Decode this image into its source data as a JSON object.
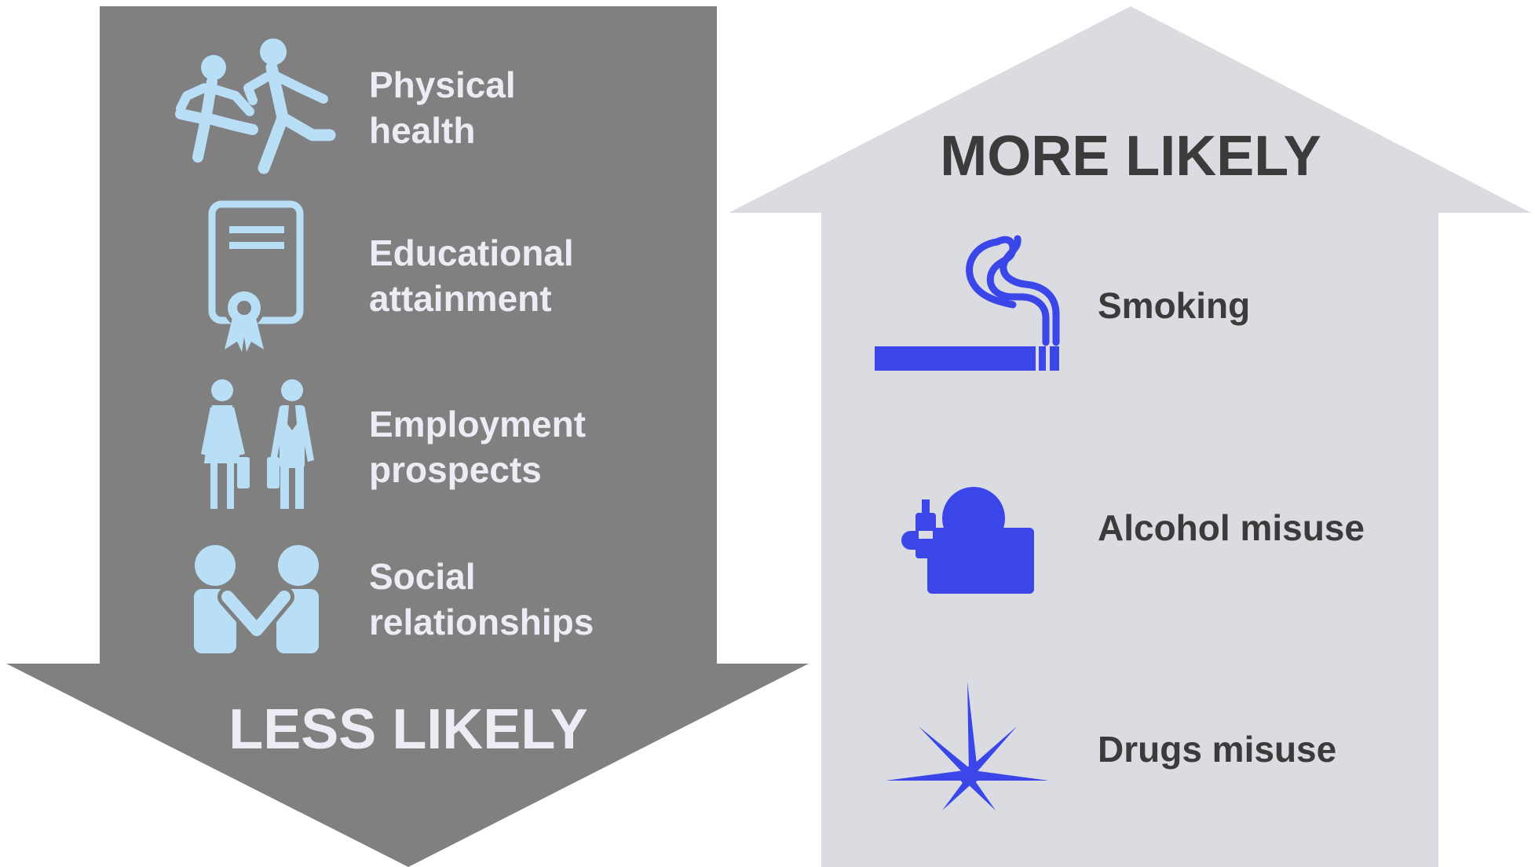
{
  "less_panel": {
    "heading": "LESS LIKELY",
    "color": "#808080",
    "icon_color": "#b9dff7",
    "items": [
      {
        "icon": "running-people-icon",
        "line1": "Physical",
        "line2": "health"
      },
      {
        "icon": "certificate-icon",
        "line1": "Educational",
        "line2": "attainment"
      },
      {
        "icon": "business-people-icon",
        "line1": "Employment",
        "line2": "prospects"
      },
      {
        "icon": "holding-hands-icon",
        "line1": "Social",
        "line2": "relationships"
      }
    ]
  },
  "more_panel": {
    "heading": "MORE LIKELY",
    "color": "#dadce1",
    "icon_color": "#3a46e8",
    "items": [
      {
        "icon": "cigarette-icon",
        "label": "Smoking"
      },
      {
        "icon": "drinking-person-icon",
        "label": "Alcohol misuse"
      },
      {
        "icon": "cannabis-leaf-icon",
        "label": "Drugs misuse"
      }
    ]
  }
}
